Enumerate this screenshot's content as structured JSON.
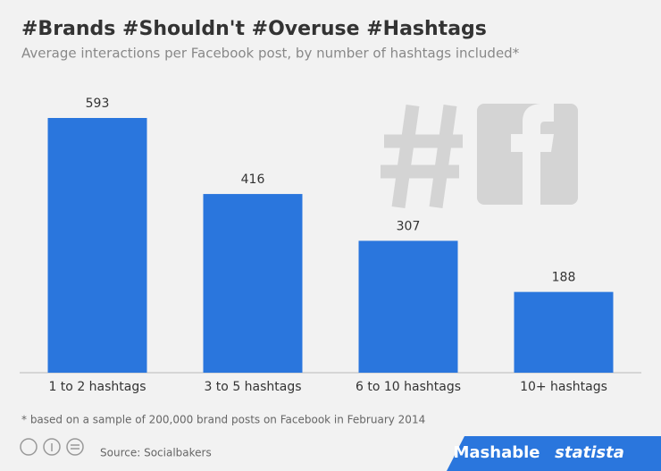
{
  "chart_data": {
    "type": "bar",
    "title": "#Brands #Shouldn't #Overuse #Hashtags",
    "subtitle": "Average interactions per Facebook post, by number of hashtags included*",
    "categories": [
      "1 to 2 hashtags",
      "3 to 5 hashtags",
      "6 to 10 hashtags",
      "10+ hashtags"
    ],
    "values": [
      593,
      416,
      307,
      188
    ],
    "color": "#2a76dd",
    "footnote": "* based on a sample of 200,000 brand posts on Facebook in February 2014",
    "source": "Source: Socialbakers",
    "brands": [
      "Mashable",
      "statista"
    ]
  }
}
